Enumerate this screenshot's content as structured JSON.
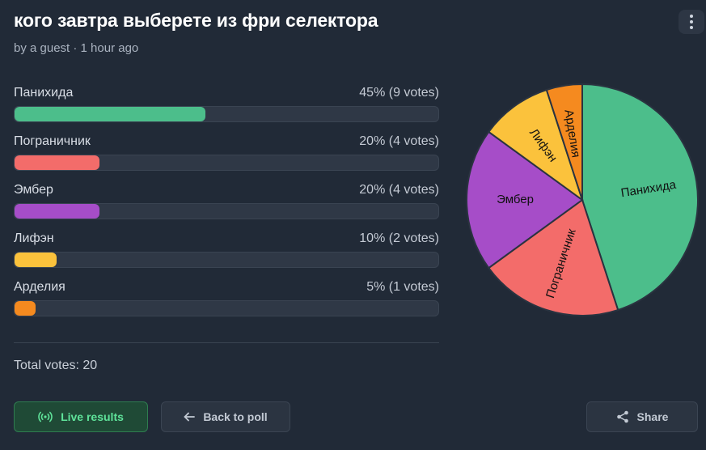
{
  "poll": {
    "title": "кого завтра выберете из фри селектора",
    "meta": "by a guest · 1 hour ago"
  },
  "options": [
    {
      "label": "Панихида",
      "result": "45% (9 votes)",
      "percent": 45,
      "color": "#4cbe8b"
    },
    {
      "label": "Пограничник",
      "result": "20% (4 votes)",
      "percent": 20,
      "color": "#f36c6a"
    },
    {
      "label": "Эмбер",
      "result": "20% (4 votes)",
      "percent": 20,
      "color": "#a64dc8"
    },
    {
      "label": "Лифэн",
      "result": "10% (2 votes)",
      "percent": 10,
      "color": "#fbc23c"
    },
    {
      "label": "Арделия",
      "result": "5% (1 votes)",
      "percent": 5,
      "color": "#f58a1f"
    }
  ],
  "total": "Total votes: 20",
  "buttons": {
    "live": "Live results",
    "back": "Back to poll",
    "share": "Share"
  },
  "icons": {
    "menu": "more-vertical-icon",
    "live": "broadcast-icon",
    "back": "arrow-left-icon",
    "share": "share-icon"
  },
  "chart_data": {
    "type": "pie",
    "categories": [
      "Панихида",
      "Пограничник",
      "Эмбер",
      "Лифэн",
      "Арделия"
    ],
    "values": [
      45,
      20,
      20,
      10,
      5
    ],
    "colors": [
      "#4cbe8b",
      "#f36c6a",
      "#a64dc8",
      "#fbc23c",
      "#f58a1f"
    ],
    "start": "12 o'clock, clockwise"
  }
}
